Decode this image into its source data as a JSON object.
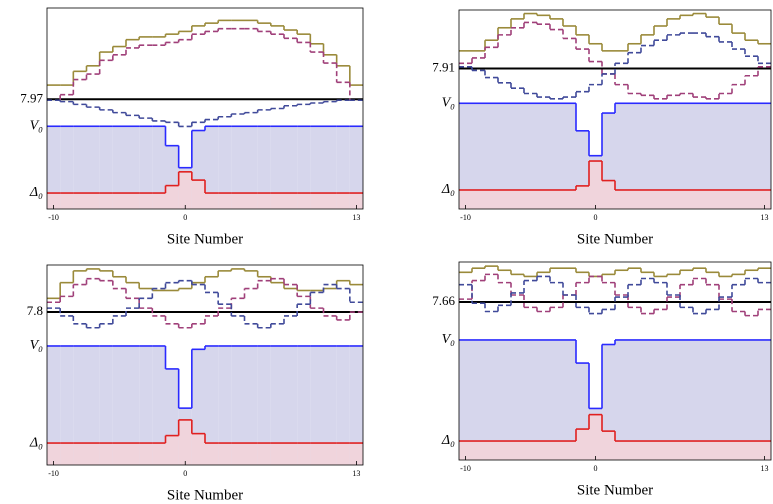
{
  "chart_data": [
    {
      "type": "step",
      "xlabel": "Site Number",
      "x": [
        -10,
        -9,
        -8,
        -7,
        -6,
        -5,
        -4,
        -3,
        -2,
        -1,
        0,
        1,
        2,
        3,
        4,
        5,
        6,
        7,
        8,
        9,
        10,
        11,
        12,
        13
      ],
      "xlim": [
        -10.5,
        13.5
      ],
      "xticks": [
        -10,
        0,
        13
      ],
      "ylim": [
        0,
        14.6
      ],
      "yticks": [
        7.97,
        {
          "value": 6.01,
          "label": "V₀"
        },
        {
          "value": 1.16,
          "label": "Δ₀"
        }
      ],
      "series": [
        {
          "color": "#2a2aff",
          "fill": "#d6d6ec",
          "style": "solid",
          "values": [
            6.01,
            6.01,
            6.01,
            6.01,
            6.01,
            6.01,
            6.01,
            6.01,
            6.01,
            4.6,
            3.0,
            5.7,
            6.01,
            6.01,
            6.01,
            6.01,
            6.01,
            6.01,
            6.01,
            6.01,
            6.01,
            6.01,
            6.01,
            6.01
          ]
        },
        {
          "color": "#e02020",
          "fill": "#f0d4dc",
          "style": "solid",
          "values": [
            1.16,
            1.16,
            1.16,
            1.16,
            1.16,
            1.16,
            1.16,
            1.16,
            1.16,
            1.7,
            2.7,
            2.1,
            1.16,
            1.16,
            1.16,
            1.16,
            1.16,
            1.16,
            1.16,
            1.16,
            1.16,
            1.16,
            1.16,
            1.16
          ]
        },
        {
          "color": "#9a8a3a",
          "style": "solid",
          "values": [
            9.0,
            9.0,
            10.0,
            10.4,
            11.4,
            11.8,
            12.3,
            12.5,
            12.5,
            12.7,
            12.9,
            13.3,
            13.5,
            13.7,
            13.7,
            13.7,
            13.5,
            13.3,
            13.0,
            12.7,
            12.0,
            11.2,
            10.4,
            9.0
          ]
        },
        {
          "color": "#a0407a",
          "style": "dashed",
          "values": [
            7.9,
            8.3,
            9.4,
            9.8,
            10.8,
            11.2,
            11.7,
            11.9,
            11.9,
            12.1,
            12.3,
            12.7,
            12.9,
            13.1,
            13.1,
            13.1,
            12.9,
            12.7,
            12.4,
            12.1,
            11.4,
            10.6,
            9.2,
            7.9
          ]
        },
        {
          "color": "#404a9a",
          "style": "dashed",
          "values": [
            7.9,
            7.8,
            7.6,
            7.4,
            7.2,
            7.0,
            6.8,
            6.6,
            6.4,
            6.3,
            6.0,
            6.3,
            6.5,
            6.7,
            6.9,
            7.0,
            7.2,
            7.3,
            7.5,
            7.6,
            7.7,
            7.8,
            7.9,
            7.9
          ]
        }
      ]
    },
    {
      "type": "step",
      "xlabel": "Site Number",
      "x": [
        -10,
        -9,
        -8,
        -7,
        -6,
        -5,
        -4,
        -3,
        -2,
        -1,
        0,
        1,
        2,
        3,
        4,
        5,
        6,
        7,
        8,
        9,
        10,
        11,
        12,
        13
      ],
      "xlim": [
        -10.5,
        13.5
      ],
      "xticks": [
        -10,
        0,
        13
      ],
      "ylim": [
        0,
        11.2
      ],
      "yticks": [
        7.91,
        {
          "value": 5.95,
          "label": "V₀"
        },
        {
          "value": 1.07,
          "label": "Δ₀"
        }
      ],
      "series": [
        {
          "color": "#2a2aff",
          "fill": "#d6d6ec",
          "style": "solid",
          "values": [
            5.95,
            5.95,
            5.95,
            5.95,
            5.95,
            5.95,
            5.95,
            5.95,
            5.95,
            4.4,
            3.0,
            5.4,
            5.95,
            5.95,
            5.95,
            5.95,
            5.95,
            5.95,
            5.95,
            5.95,
            5.95,
            5.95,
            5.95,
            5.95
          ]
        },
        {
          "color": "#e02020",
          "fill": "#f0d4dc",
          "style": "solid",
          "values": [
            1.07,
            1.07,
            1.07,
            1.07,
            1.07,
            1.07,
            1.07,
            1.07,
            1.07,
            1.3,
            2.7,
            1.6,
            1.07,
            1.07,
            1.07,
            1.07,
            1.07,
            1.07,
            1.07,
            1.07,
            1.07,
            1.07,
            1.07,
            1.07
          ]
        },
        {
          "color": "#9a8a3a",
          "style": "solid",
          "values": [
            8.9,
            8.9,
            9.5,
            10.2,
            10.7,
            11.0,
            10.9,
            10.7,
            10.3,
            9.8,
            9.3,
            8.9,
            8.9,
            9.3,
            9.8,
            10.3,
            10.7,
            10.9,
            11.0,
            10.8,
            10.4,
            9.9,
            9.5,
            9.3
          ]
        },
        {
          "color": "#a0407a",
          "style": "dashed",
          "values": [
            8.2,
            8.5,
            9.1,
            9.8,
            10.2,
            10.5,
            10.4,
            10.1,
            9.6,
            9.0,
            8.3,
            7.6,
            7.0,
            6.5,
            6.4,
            6.2,
            6.4,
            6.5,
            6.3,
            6.2,
            6.5,
            7.0,
            7.5,
            8.0
          ]
        },
        {
          "color": "#404a9a",
          "style": "dashed",
          "values": [
            8.0,
            7.8,
            7.4,
            7.1,
            6.8,
            6.5,
            6.3,
            6.2,
            6.3,
            6.6,
            7.0,
            7.6,
            8.2,
            8.8,
            9.2,
            9.5,
            9.8,
            9.9,
            9.9,
            9.7,
            9.4,
            9.0,
            8.6,
            8.2
          ]
        }
      ]
    },
    {
      "type": "step",
      "xlabel": "Site Number",
      "x": [
        -10,
        -9,
        -8,
        -7,
        -6,
        -5,
        -4,
        -3,
        -2,
        -1,
        0,
        1,
        2,
        3,
        4,
        5,
        6,
        7,
        8,
        9,
        10,
        11,
        12,
        13
      ],
      "xlim": [
        -10.5,
        13.5
      ],
      "xticks": [
        -10,
        0,
        13
      ],
      "ylim": [
        0,
        10.2
      ],
      "yticks": [
        7.8,
        {
          "value": 6.07,
          "label": "V₀"
        },
        {
          "value": 1.12,
          "label": "Δ₀"
        }
      ],
      "series": [
        {
          "color": "#2a2aff",
          "fill": "#d6d6ec",
          "style": "solid",
          "values": [
            6.07,
            6.07,
            6.07,
            6.07,
            6.07,
            6.07,
            6.07,
            6.07,
            6.07,
            4.9,
            2.9,
            5.9,
            6.07,
            6.07,
            6.07,
            6.07,
            6.07,
            6.07,
            6.07,
            6.07,
            6.07,
            6.07,
            6.07,
            6.07
          ]
        },
        {
          "color": "#e02020",
          "fill": "#f0d4dc",
          "style": "solid",
          "values": [
            1.12,
            1.12,
            1.12,
            1.12,
            1.12,
            1.12,
            1.12,
            1.12,
            1.12,
            1.5,
            2.3,
            1.6,
            1.12,
            1.12,
            1.12,
            1.12,
            1.12,
            1.12,
            1.12,
            1.12,
            1.12,
            1.12,
            1.12,
            1.12
          ]
        },
        {
          "color": "#9a8a3a",
          "style": "solid",
          "values": [
            8.5,
            9.3,
            9.9,
            10.0,
            9.9,
            9.6,
            9.3,
            9.0,
            8.9,
            8.9,
            9.0,
            9.3,
            9.6,
            9.9,
            10.0,
            9.9,
            9.6,
            9.3,
            9.0,
            8.9,
            8.9,
            9.0,
            9.4,
            9.2
          ]
        },
        {
          "color": "#a0407a",
          "style": "dashed",
          "values": [
            8.3,
            8.6,
            9.2,
            9.5,
            9.4,
            9.0,
            8.5,
            8.0,
            7.6,
            7.2,
            7.0,
            7.2,
            7.6,
            8.0,
            8.5,
            9.0,
            9.4,
            9.5,
            9.2,
            8.6,
            8.0,
            7.6,
            7.4,
            7.8
          ]
        },
        {
          "color": "#404a9a",
          "style": "dashed",
          "values": [
            8.0,
            7.6,
            7.2,
            7.0,
            7.2,
            7.6,
            8.0,
            8.5,
            9.0,
            9.3,
            9.4,
            9.2,
            8.8,
            8.2,
            7.6,
            7.2,
            7.0,
            7.2,
            7.6,
            8.2,
            8.8,
            9.2,
            9.0,
            8.3
          ]
        }
      ]
    },
    {
      "type": "step",
      "xlabel": "Site Number",
      "x": [
        -10,
        -9,
        -8,
        -7,
        -6,
        -5,
        -4,
        -3,
        -2,
        -1,
        0,
        1,
        2,
        3,
        4,
        5,
        6,
        7,
        8,
        9,
        10,
        11,
        12,
        13
      ],
      "xlim": [
        -10.5,
        13.5
      ],
      "xticks": [
        -10,
        0,
        13
      ],
      "ylim": [
        0,
        9.6
      ],
      "yticks": [
        7.66,
        {
          "value": 5.82,
          "label": "V₀"
        },
        {
          "value": 0.92,
          "label": "Δ₀"
        }
      ],
      "series": [
        {
          "color": "#2a2aff",
          "fill": "#d6d6ec",
          "style": "solid",
          "values": [
            5.82,
            5.82,
            5.82,
            5.82,
            5.82,
            5.82,
            5.82,
            5.82,
            5.82,
            4.7,
            2.5,
            5.6,
            5.82,
            5.82,
            5.82,
            5.82,
            5.82,
            5.82,
            5.82,
            5.82,
            5.82,
            5.82,
            5.82,
            5.82
          ]
        },
        {
          "color": "#e02020",
          "fill": "#f0d4dc",
          "style": "solid",
          "values": [
            0.92,
            0.92,
            0.92,
            0.92,
            0.92,
            0.92,
            0.92,
            0.92,
            0.92,
            1.5,
            2.2,
            1.4,
            0.92,
            0.92,
            0.92,
            0.92,
            0.92,
            0.92,
            0.92,
            0.92,
            0.92,
            0.92,
            0.92,
            0.92
          ]
        },
        {
          "color": "#9a8a3a",
          "style": "solid",
          "values": [
            9.1,
            9.3,
            9.4,
            9.2,
            9.0,
            8.9,
            9.1,
            9.3,
            9.3,
            9.1,
            8.9,
            9.0,
            9.2,
            9.3,
            9.1,
            8.9,
            9.0,
            9.2,
            9.3,
            9.1,
            8.9,
            9.0,
            9.2,
            9.3
          ]
        },
        {
          "color": "#a0407a",
          "style": "dashed",
          "values": [
            7.8,
            8.7,
            9.0,
            8.6,
            8.0,
            7.4,
            7.2,
            7.4,
            8.0,
            8.6,
            8.9,
            8.6,
            8.0,
            7.4,
            7.1,
            7.3,
            7.9,
            8.5,
            8.8,
            8.5,
            7.8,
            7.2,
            7.0,
            7.3
          ]
        },
        {
          "color": "#404a9a",
          "style": "dashed",
          "values": [
            8.5,
            7.6,
            7.2,
            7.5,
            8.1,
            8.7,
            8.9,
            8.6,
            8.0,
            7.4,
            7.1,
            7.3,
            7.9,
            8.5,
            8.8,
            8.6,
            8.0,
            7.4,
            7.1,
            7.3,
            7.9,
            8.5,
            8.8,
            8.6
          ]
        }
      ]
    }
  ]
}
